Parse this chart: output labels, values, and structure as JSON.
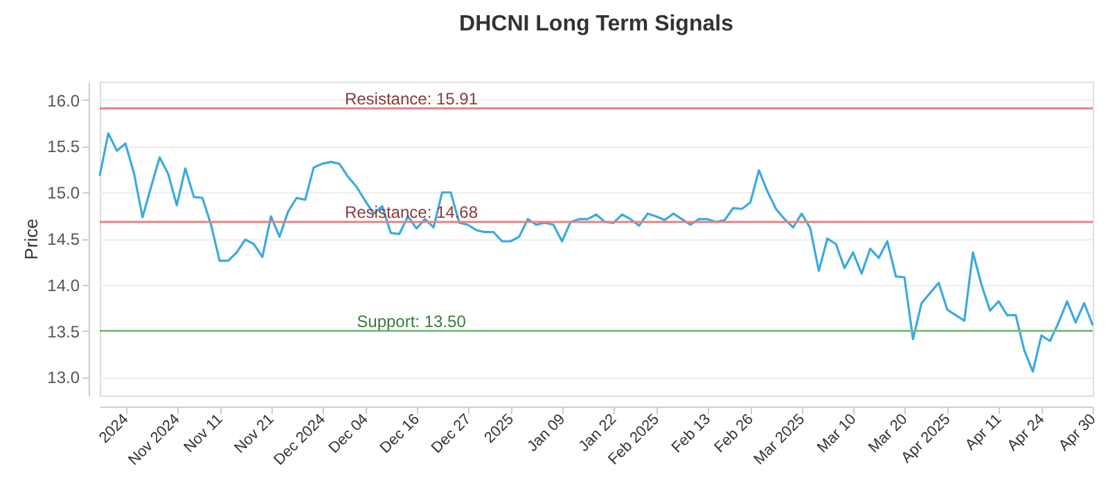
{
  "chart_data": {
    "type": "line",
    "title": "DHCNI Long Term Signals",
    "ylabel": "Price",
    "categories": [
      null,
      null,
      null,
      "2024",
      null,
      null,
      null,
      null,
      null,
      "Nov 2024",
      null,
      null,
      null,
      null,
      "Nov 11",
      null,
      null,
      null,
      null,
      null,
      "Nov 21",
      null,
      null,
      null,
      null,
      null,
      "Dec 2024",
      null,
      null,
      null,
      null,
      "Dec 04",
      null,
      null,
      null,
      null,
      null,
      "Dec 16",
      null,
      null,
      null,
      null,
      null,
      "Dec 27",
      null,
      null,
      null,
      null,
      "2025",
      null,
      null,
      null,
      null,
      null,
      "Jan 09",
      null,
      null,
      null,
      null,
      null,
      "Jan 22",
      null,
      null,
      null,
      null,
      "Feb 2025",
      null,
      null,
      null,
      null,
      null,
      "Feb 13",
      null,
      null,
      null,
      null,
      "Feb 26",
      null,
      null,
      null,
      null,
      null,
      "Mar 2025",
      null,
      null,
      null,
      null,
      null,
      "Mar 10",
      null,
      null,
      null,
      null,
      null,
      "Mar 20",
      null,
      null,
      null,
      null,
      "Apr 2025",
      null,
      null,
      null,
      null,
      null,
      "Apr 11",
      null,
      null,
      null,
      null,
      "Apr 24",
      null,
      null,
      null,
      null,
      null,
      "Apr 30"
    ],
    "series": [
      {
        "color": "#3aaae0",
        "values": [
          15.18,
          15.64,
          15.45,
          15.53,
          15.21,
          14.73,
          15.06,
          15.38,
          15.2,
          14.86,
          15.26,
          14.95,
          14.94,
          14.65,
          14.26,
          14.26,
          14.35,
          14.49,
          14.44,
          14.3,
          14.74,
          14.52,
          14.79,
          14.94,
          14.92,
          15.27,
          15.31,
          15.33,
          15.31,
          15.17,
          15.06,
          14.91,
          14.77,
          14.85,
          14.56,
          14.55,
          14.74,
          14.61,
          14.71,
          14.62,
          15.0,
          15.0,
          14.67,
          14.65,
          14.59,
          14.57,
          14.57,
          14.47,
          14.47,
          14.52,
          14.71,
          14.65,
          14.67,
          14.65,
          14.47,
          14.68,
          14.71,
          14.71,
          14.76,
          14.68,
          14.67,
          14.76,
          14.71,
          14.64,
          14.77,
          14.74,
          14.7,
          14.77,
          14.71,
          14.65,
          14.71,
          14.71,
          14.68,
          14.7,
          14.83,
          14.82,
          14.89,
          15.24,
          15.01,
          14.82,
          14.71,
          14.62,
          14.77,
          14.61,
          14.15,
          14.5,
          14.44,
          14.18,
          14.35,
          14.12,
          14.39,
          14.29,
          14.47,
          14.09,
          14.08,
          13.41,
          13.8,
          13.91,
          14.02,
          13.73,
          13.67,
          13.61,
          14.35,
          14.0,
          13.72,
          13.82,
          13.67,
          13.67,
          13.29,
          13.06,
          13.45,
          13.39,
          13.59,
          13.82,
          13.59,
          13.8,
          13.56
        ]
      }
    ],
    "ylim": [
      12.8,
      16.2
    ],
    "yticks": [
      {
        "value": 13,
        "label": "13.0"
      },
      {
        "value": 13.5,
        "label": "13.5"
      },
      {
        "value": 14,
        "label": "14.0"
      },
      {
        "value": 14.5,
        "label": "14.5"
      },
      {
        "value": 15,
        "label": "15.0"
      },
      {
        "value": 15.5,
        "label": "15.5"
      },
      {
        "value": 16,
        "label": "16.0"
      }
    ],
    "ref_lines": [
      {
        "axis": "y",
        "value": 15.91,
        "label": "Resistance: 15.91",
        "color": "#e88080"
      },
      {
        "axis": "y",
        "value": 14.68,
        "label": "Resistance: 14.68",
        "color": "#e88080"
      },
      {
        "axis": "y",
        "value": 13.5,
        "label": "Support: 13.50",
        "color": "#80c080"
      }
    ],
    "grid": "y",
    "legend": false,
    "marker": "none",
    "line_style": "solid"
  }
}
